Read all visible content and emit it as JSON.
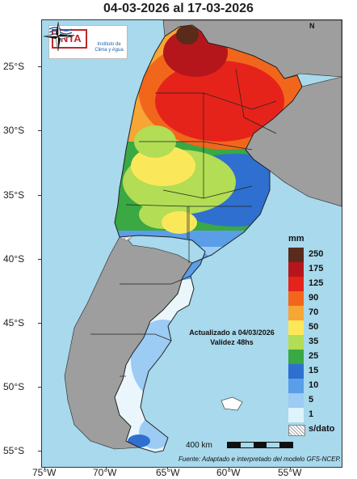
{
  "title": "04-03-2026 al 17-03-2026",
  "latitude_labels": [
    "25°S",
    "30°S",
    "35°S",
    "40°S",
    "45°S",
    "50°S",
    "55°S"
  ],
  "longitude_labels": [
    "75°W",
    "70°W",
    "65°W",
    "60°W",
    "55°W"
  ],
  "logos": {
    "inta": "INTA",
    "institute": "Instituto de Clima y Agua"
  },
  "compass_label": "N",
  "legend": {
    "unit": "mm",
    "items": [
      {
        "label": "250",
        "color": "#5a2a1a"
      },
      {
        "label": "175",
        "color": "#b5161b"
      },
      {
        "label": "125",
        "color": "#e5231b"
      },
      {
        "label": "90",
        "color": "#f2661c"
      },
      {
        "label": "70",
        "color": "#f7a534"
      },
      {
        "label": "50",
        "color": "#fbe85a"
      },
      {
        "label": "35",
        "color": "#b2dd55"
      },
      {
        "label": "25",
        "color": "#3aa843"
      },
      {
        "label": "15",
        "color": "#2f6fd0"
      },
      {
        "label": "10",
        "color": "#5a9ee8"
      },
      {
        "label": "5",
        "color": "#9ccbf4"
      },
      {
        "label": "1",
        "color": "#dff3fb"
      },
      {
        "label": "s/dato",
        "color": "#ffffff"
      }
    ]
  },
  "update_text": "Actualizado a 04/03/2026",
  "validity_text": "Validez 48hs",
  "scale_label": "400 km",
  "source_text": "Fuente: Adaptado e interpretado del modelo GFS-NCEP.",
  "colors": {
    "ocean": "#a8d9ec",
    "neighbors": "#9e9e9e",
    "border": "#222222"
  }
}
